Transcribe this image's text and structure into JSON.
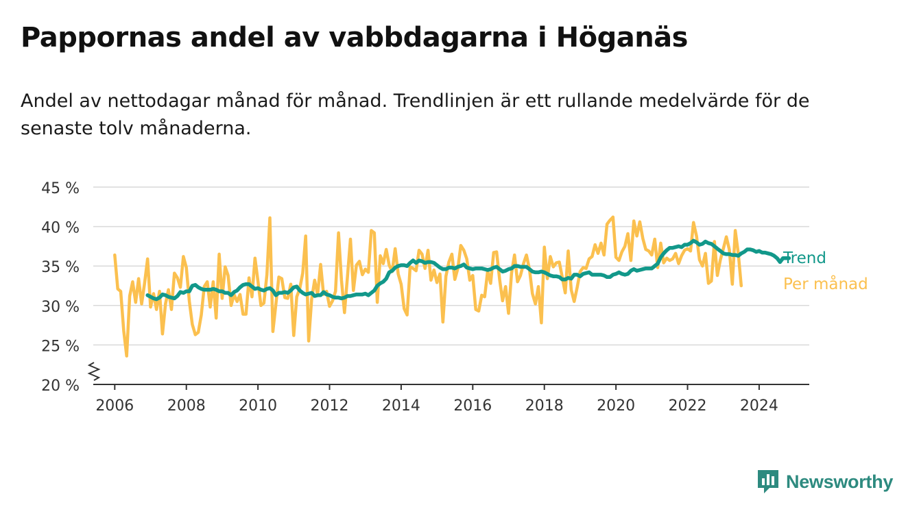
{
  "header": {
    "title": "Pappornas andel av vabbdagarna i Höganäs",
    "subtitle": "Andel av nettodagar månad för månad. Trendlinjen är ett rullande medelvärde för de senaste tolv månaderna."
  },
  "brand": {
    "name": "Newsworthy",
    "icon": "newsworthy-logo-icon",
    "color": "#2d8a7f"
  },
  "chart_data": {
    "type": "line",
    "title": "Pappornas andel av vabbdagarna i Höganäs",
    "subtitle": "Andel av nettodagar månad för månad. Trendlinjen är ett rullande medelvärde för de senaste tolv månaderna.",
    "xlabel": "",
    "ylabel": "",
    "ylim": [
      20,
      45
    ],
    "xlim": [
      2005.4,
      2025.4
    ],
    "y_ticks": [
      20,
      25,
      30,
      35,
      40,
      45
    ],
    "y_tick_labels": [
      "20 %",
      "25 %",
      "30 %",
      "35 %",
      "40 %",
      "45 %"
    ],
    "x_ticks": [
      2006,
      2008,
      2010,
      2012,
      2014,
      2016,
      2018,
      2020,
      2022,
      2024
    ],
    "x_tick_labels": [
      "2006",
      "2008",
      "2010",
      "2012",
      "2014",
      "2016",
      "2018",
      "2020",
      "2022",
      "2024"
    ],
    "grid": true,
    "axis_break": true,
    "legend": "direct labels at line ends (right)",
    "series": [
      {
        "name": "Per månad",
        "color": "#fbc04f",
        "start": "2006-01",
        "values": [
          36.4,
          32.1,
          31.8,
          26.8,
          23.6,
          31.2,
          33.0,
          30.4,
          33.4,
          30.2,
          32.8,
          35.9,
          29.8,
          31.5,
          29.5,
          31.8,
          26.4,
          30.2,
          32.0,
          29.5,
          34.1,
          33.5,
          32.3,
          36.2,
          34.8,
          30.5,
          27.6,
          26.3,
          26.6,
          28.8,
          32.4,
          33.0,
          29.8,
          33.0,
          28.4,
          36.5,
          30.9,
          34.9,
          33.8,
          30.0,
          31.4,
          30.5,
          31.4,
          28.9,
          28.9,
          33.5,
          31.1,
          36.0,
          33.1,
          30.0,
          30.3,
          33.9,
          41.1,
          26.7,
          30.1,
          33.6,
          33.4,
          31.0,
          30.9,
          32.7,
          26.2,
          31.1,
          32.1,
          34.1,
          38.8,
          25.5,
          30.8,
          33.2,
          31.4,
          35.2,
          31.4,
          31.8,
          29.9,
          30.6,
          31.8,
          39.2,
          33.2,
          29.1,
          33.6,
          38.4,
          31.9,
          35.1,
          35.6,
          33.9,
          34.6,
          34.2,
          39.5,
          39.2,
          30.4,
          36.3,
          35.3,
          37.1,
          35.1,
          34.3,
          37.2,
          34.0,
          32.7,
          29.6,
          28.8,
          34.9,
          34.7,
          34.4,
          37.0,
          36.5,
          34.7,
          37.0,
          33.2,
          34.5,
          32.9,
          34.0,
          27.9,
          33.7,
          35.5,
          36.5,
          33.3,
          34.7,
          37.6,
          37.0,
          35.9,
          33.2,
          33.8,
          29.5,
          29.3,
          31.3,
          31.1,
          34.4,
          32.8,
          36.7,
          36.8,
          33.3,
          30.6,
          32.4,
          29.0,
          34.1,
          36.4,
          33.0,
          33.8,
          35.3,
          36.4,
          34.6,
          31.5,
          30.2,
          32.4,
          27.8,
          37.4,
          33.4,
          36.2,
          34.9,
          35.4,
          35.5,
          33.6,
          31.6,
          36.9,
          32.0,
          30.5,
          32.3,
          34.3,
          34.8,
          34.7,
          35.9,
          36.2,
          37.7,
          36.6,
          37.9,
          36.4,
          40.3,
          40.8,
          41.2,
          36.1,
          35.7,
          36.8,
          37.5,
          39.1,
          35.7,
          40.7,
          38.8,
          40.6,
          38.5,
          37.1,
          36.9,
          36.4,
          38.4,
          34.8,
          37.9,
          35.4,
          36.0,
          35.7,
          35.9,
          36.6,
          35.3,
          36.3,
          37.0,
          37.2,
          36.9,
          40.5,
          38.8,
          35.8,
          35.0,
          36.6,
          32.8,
          33.1,
          38.1,
          33.8,
          35.8,
          37.2,
          38.7,
          37.1,
          32.7,
          39.5,
          36.6,
          32.5
        ]
      },
      {
        "name": "Trend",
        "color": "#12988a",
        "start": "2006-12",
        "values": [
          31.3,
          31.1,
          30.9,
          30.8,
          31.0,
          31.4,
          31.3,
          31.1,
          31.0,
          30.9,
          31.2,
          31.7,
          31.6,
          31.8,
          31.8,
          32.5,
          32.6,
          32.3,
          32.1,
          32.0,
          32.0,
          32.0,
          32.1,
          32.0,
          31.8,
          31.8,
          31.6,
          31.6,
          31.3,
          31.7,
          31.9,
          32.3,
          32.6,
          32.7,
          32.7,
          32.4,
          32.1,
          32.2,
          32.0,
          31.9,
          32.1,
          32.2,
          31.9,
          31.3,
          31.6,
          31.6,
          31.7,
          31.6,
          31.9,
          32.3,
          32.4,
          31.9,
          31.6,
          31.4,
          31.5,
          31.6,
          31.2,
          31.3,
          31.3,
          31.7,
          31.4,
          31.3,
          31.1,
          31.0,
          31.0,
          30.9,
          31.0,
          31.2,
          31.2,
          31.3,
          31.4,
          31.4,
          31.4,
          31.5,
          31.3,
          31.6,
          31.9,
          32.5,
          32.8,
          33.0,
          33.4,
          34.2,
          34.4,
          34.8,
          35.0,
          35.1,
          35.1,
          35.0,
          35.4,
          35.7,
          35.4,
          35.7,
          35.6,
          35.4,
          35.5,
          35.5,
          35.4,
          35.1,
          34.8,
          34.6,
          34.6,
          34.8,
          34.8,
          34.7,
          34.9,
          35.0,
          35.2,
          34.8,
          34.7,
          34.6,
          34.7,
          34.7,
          34.7,
          34.6,
          34.5,
          34.6,
          34.8,
          34.9,
          34.6,
          34.3,
          34.4,
          34.6,
          34.7,
          35.0,
          35.0,
          34.9,
          34.9,
          34.9,
          34.6,
          34.3,
          34.2,
          34.2,
          34.3,
          34.2,
          34.0,
          33.8,
          33.7,
          33.7,
          33.6,
          33.3,
          33.3,
          33.5,
          33.4,
          33.9,
          33.9,
          33.7,
          34.0,
          34.1,
          34.2,
          33.9,
          33.9,
          33.9,
          33.9,
          33.8,
          33.6,
          33.6,
          33.9,
          34.0,
          34.2,
          34.0,
          33.9,
          34.0,
          34.4,
          34.6,
          34.4,
          34.5,
          34.6,
          34.7,
          34.7,
          34.7,
          35.0,
          35.3,
          36.1,
          36.6,
          37.0,
          37.3,
          37.3,
          37.4,
          37.5,
          37.4,
          37.7,
          37.7,
          37.9,
          38.2,
          38.0,
          37.7,
          37.8,
          38.1,
          37.9,
          37.8,
          37.5,
          37.2,
          36.9,
          36.6,
          36.5,
          36.5,
          36.4,
          36.4,
          36.3,
          36.6,
          36.8,
          37.1,
          37.1,
          37.0,
          36.8,
          36.9,
          36.7,
          36.7,
          36.6,
          36.5,
          36.3,
          36.0,
          35.5,
          36.0,
          36.0,
          36.0
        ]
      }
    ]
  }
}
